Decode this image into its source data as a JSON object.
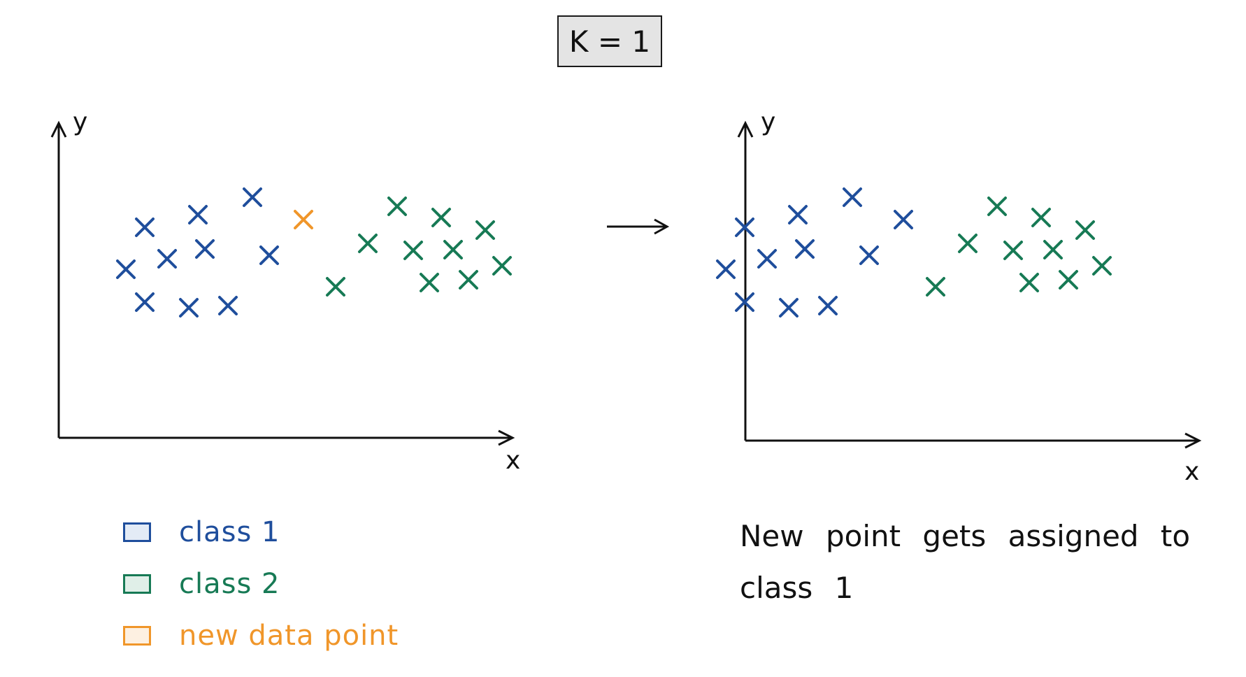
{
  "header": {
    "k_label": "K = 1"
  },
  "axes": {
    "x_label": "x",
    "y_label": "y"
  },
  "colors": {
    "class_1": "#1f4e9c",
    "class_2": "#177a55",
    "new_point": "#f0962a",
    "class_1_fill": "#e3ebf6",
    "class_2_fill": "#e0efe8",
    "new_point_fill": "#fdf0e1",
    "axis": "#111111"
  },
  "legend": [
    {
      "key": "class_1",
      "label": "class 1"
    },
    {
      "key": "class_2",
      "label": "class 2"
    },
    {
      "key": "new_point",
      "label": "new data point"
    }
  ],
  "result_text": "New point gets assigned to class 1",
  "arrow_icon": "right-arrow-icon",
  "point_marker": "x-mark"
}
